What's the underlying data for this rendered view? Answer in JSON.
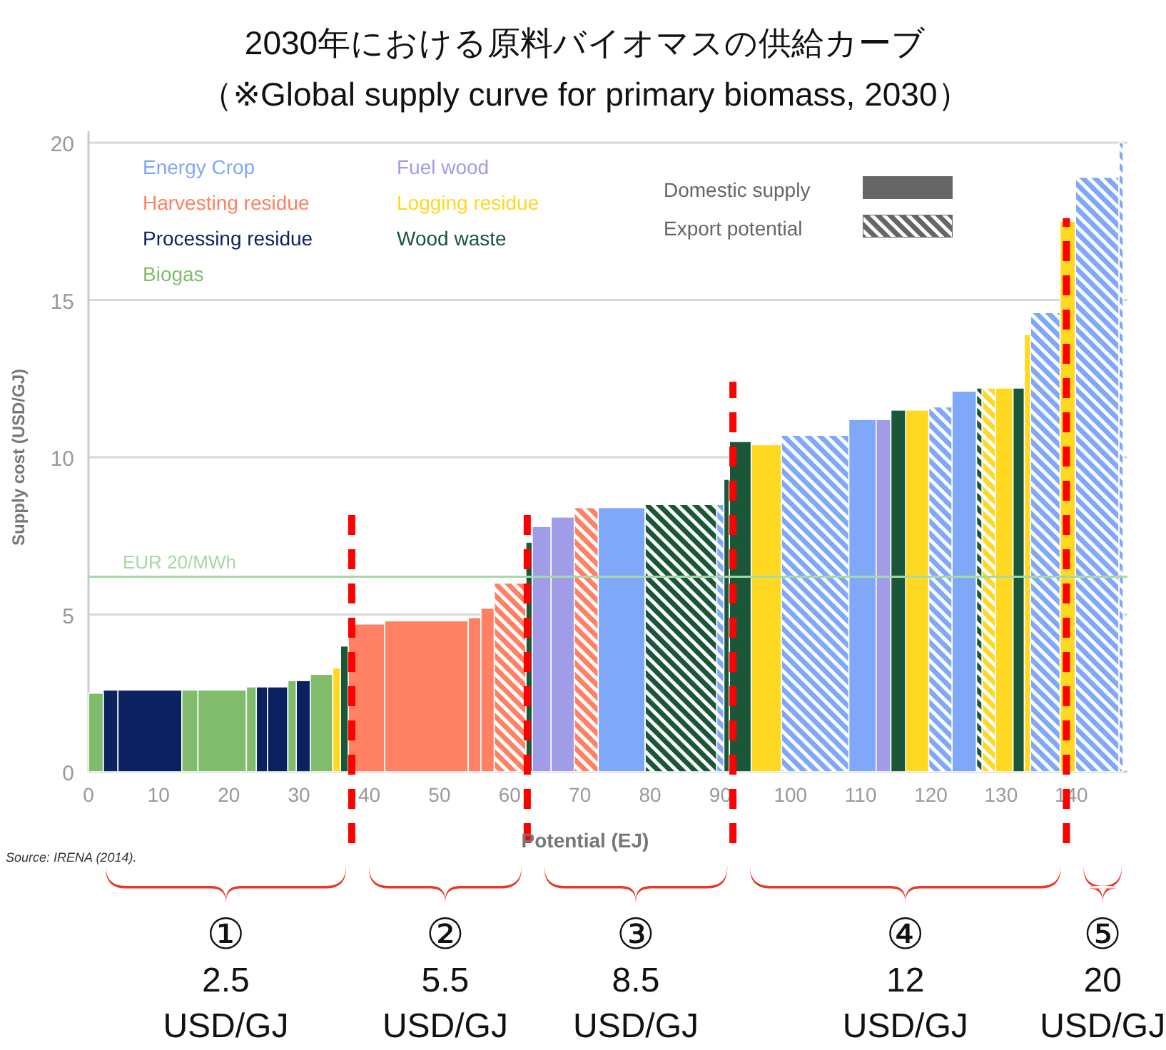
{
  "chart_data": {
    "type": "histogram",
    "title": "2030年における原料バイオマスの供給カーブ",
    "subtitle": "（※Global supply curve for primary biomass, 2030）",
    "xlabel": "Potential (EJ)",
    "ylabel": "Supply cost (USD/GJ)",
    "bins": [
      0,
      2.1,
      4.2,
      13.3,
      15.6,
      22.5,
      23.9,
      25.5,
      28.4,
      29.6,
      31.6,
      34.8,
      35.9,
      37,
      42.2,
      54.1,
      55.9,
      57.8,
      62.3,
      63.2,
      65.9,
      69.2,
      72.6,
      79.3,
      89.5,
      90.5,
      91.3,
      94.4,
      98.7,
      108.3,
      112.2,
      114.3,
      116.4,
      119.7,
      123,
      126.5,
      127.3,
      129.2,
      131.7,
      133.3,
      134.2,
      138.4,
      140.6,
      146.8,
      147.4
    ],
    "series": [
      {
        "name": "Energy Crop",
        "color": "#80a8f8",
        "values": [
          null,
          null,
          null,
          null,
          null,
          null,
          null,
          null,
          null,
          null,
          null,
          null,
          null,
          null,
          null,
          null,
          null,
          null,
          null,
          null,
          null,
          null,
          8.4,
          null,
          null,
          null,
          null,
          null,
          null,
          11.2,
          null,
          null,
          null,
          null,
          12.1,
          null,
          null,
          null,
          null,
          null,
          null,
          null,
          null,
          null
        ]
      },
      {
        "name": "Harvesting residue",
        "color": "#ff8062",
        "values": [
          null,
          null,
          null,
          null,
          null,
          null,
          null,
          null,
          null,
          null,
          null,
          null,
          null,
          4.7,
          4.8,
          4.9,
          5.2,
          null,
          null,
          null,
          null,
          null,
          null,
          null,
          null,
          null,
          null,
          null,
          null,
          null,
          null,
          null,
          null,
          null,
          null,
          null,
          null,
          null,
          null,
          null,
          null,
          null,
          null,
          null
        ]
      },
      {
        "name": "Processing residue",
        "color": "#0c2260",
        "values": [
          null,
          2.6,
          2.6,
          null,
          null,
          null,
          2.7,
          2.7,
          null,
          2.9,
          null,
          null,
          null,
          null,
          null,
          null,
          null,
          null,
          null,
          null,
          null,
          null,
          null,
          null,
          null,
          null,
          null,
          null,
          null,
          null,
          null,
          null,
          null,
          null,
          null,
          null,
          null,
          null,
          null,
          null,
          null,
          null,
          null,
          null
        ]
      },
      {
        "name": "Biogas",
        "color": "#80bc6c",
        "values": [
          2.5,
          null,
          null,
          2.6,
          2.6,
          2.7,
          null,
          null,
          2.9,
          null,
          3.1,
          null,
          null,
          null,
          null,
          null,
          null,
          null,
          null,
          null,
          null,
          null,
          null,
          null,
          null,
          null,
          null,
          null,
          null,
          null,
          null,
          null,
          null,
          null,
          null,
          null,
          null,
          null,
          null,
          null,
          null,
          null,
          null,
          null
        ]
      },
      {
        "name": "Fuel wood",
        "color": "#a09ce8",
        "values": [
          null,
          null,
          null,
          null,
          null,
          null,
          null,
          null,
          null,
          null,
          null,
          null,
          null,
          null,
          null,
          null,
          null,
          null,
          null,
          7.8,
          8.1,
          null,
          null,
          null,
          null,
          null,
          null,
          null,
          null,
          null,
          11.2,
          null,
          null,
          null,
          null,
          null,
          null,
          null,
          null,
          null,
          null,
          null,
          null,
          null
        ]
      },
      {
        "name": "Logging residue",
        "color": "#ffd822",
        "values": [
          null,
          null,
          null,
          null,
          null,
          null,
          null,
          null,
          null,
          null,
          null,
          3.3,
          null,
          null,
          null,
          null,
          null,
          null,
          null,
          null,
          null,
          null,
          null,
          null,
          null,
          null,
          null,
          10.4,
          null,
          null,
          null,
          null,
          11.5,
          null,
          null,
          null,
          null,
          12.2,
          null,
          13.9,
          null,
          17.5,
          null,
          null
        ]
      },
      {
        "name": "Wood waste",
        "color": "#1a5638",
        "values": [
          null,
          null,
          null,
          null,
          null,
          null,
          null,
          null,
          null,
          null,
          null,
          null,
          4.0,
          null,
          null,
          null,
          null,
          null,
          7.3,
          null,
          null,
          null,
          null,
          null,
          null,
          9.3,
          10.5,
          null,
          null,
          null,
          null,
          11.5,
          null,
          null,
          null,
          null,
          null,
          null,
          12.2,
          null,
          null,
          null,
          null,
          null
        ]
      },
      {
        "color": "#ff8062",
        "values": [
          null,
          null,
          null,
          null,
          null,
          null,
          null,
          null,
          null,
          null,
          null,
          null,
          null,
          null,
          null,
          null,
          null,
          6.0,
          null,
          null,
          null,
          8.4,
          null,
          null,
          null,
          null,
          null,
          null,
          null,
          null,
          null,
          null,
          null,
          null,
          null,
          null,
          null,
          null,
          null,
          null,
          null,
          null,
          null,
          null
        ]
      },
      {
        "color": "#1a5638",
        "values": [
          null,
          null,
          null,
          null,
          null,
          null,
          null,
          null,
          null,
          null,
          null,
          null,
          null,
          null,
          null,
          null,
          null,
          null,
          null,
          null,
          null,
          null,
          null,
          8.5,
          null,
          null,
          null,
          null,
          null,
          null,
          null,
          null,
          null,
          null,
          null,
          12.2,
          null,
          null,
          null,
          null,
          null,
          null,
          null,
          null
        ]
      },
      {
        "color": "#80a8f8",
        "values": [
          null,
          null,
          null,
          null,
          null,
          null,
          null,
          null,
          null,
          null,
          null,
          null,
          null,
          null,
          null,
          null,
          null,
          null,
          null,
          null,
          null,
          null,
          null,
          null,
          8.5,
          null,
          null,
          null,
          10.7,
          null,
          null,
          null,
          null,
          11.6,
          null,
          null,
          null,
          null,
          null,
          null,
          14.6,
          null,
          18.9,
          20
        ]
      },
      {
        "color": "#ffd822",
        "values": [
          null,
          null,
          null,
          null,
          null,
          null,
          null,
          null,
          null,
          null,
          null,
          null,
          null,
          null,
          null,
          null,
          null,
          null,
          null,
          null,
          null,
          null,
          null,
          null,
          null,
          null,
          null,
          null,
          null,
          null,
          null,
          null,
          null,
          null,
          null,
          null,
          12.2,
          null,
          null,
          null,
          null,
          null,
          null,
          null
        ]
      }
    ],
    "xlim": [
      0,
      148
    ],
    "xticks": [
      0,
      10,
      20,
      30,
      40,
      50,
      60,
      70,
      80,
      90,
      100,
      110,
      120,
      130,
      140
    ],
    "ylim": [
      0,
      20
    ],
    "yticks": [
      0,
      5,
      10,
      15,
      20
    ],
    "grid": "y",
    "legend": "top left",
    "ref_lines": [
      {
        "axis": "y",
        "value": 6.2,
        "label": "EUR 20/MWh",
        "color": "#a8d8a8",
        "line_style": "solid"
      },
      {
        "axis": "x",
        "value": 37.5,
        "color": "#ff0000",
        "line_style": "dashed"
      },
      {
        "axis": "x",
        "value": 62.5,
        "color": "#ff0000",
        "line_style": "dashed"
      },
      {
        "axis": "x",
        "value": 91.8,
        "color": "#ff0000",
        "line_style": "dashed"
      },
      {
        "axis": "x",
        "value": 139.3,
        "color": "#ff0000",
        "line_style": "dashed"
      }
    ],
    "annotations": [
      "①\n2.5\nUSD/GJ",
      "②\n5.5\nUSD/GJ",
      "③\n8.5\nUSD/GJ",
      "④\n12\nUSD/GJ",
      "⑤\n20\nUSD/GJ",
      "Source: IRENA (2014).",
      "Domestic supply",
      "Export potential"
    ]
  }
}
